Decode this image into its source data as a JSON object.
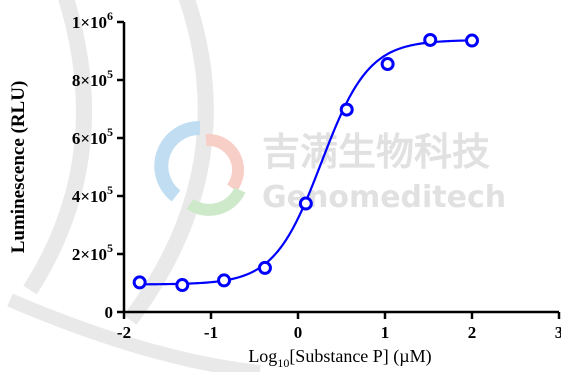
{
  "chart_data": {
    "type": "scatter",
    "title": "",
    "xlabel_main": "Log",
    "xlabel_sub": "10",
    "xlabel_rest": "[Substance P] (µM)",
    "ylabel": "Luminescence (RLU)",
    "xlim": [
      -2,
      3
    ],
    "ylim": [
      0,
      1000000
    ],
    "x_ticks": [
      {
        "value": -2,
        "label": "-2"
      },
      {
        "value": -1,
        "label": "-1"
      },
      {
        "value": 0,
        "label": "0"
      },
      {
        "value": 1,
        "label": "1"
      },
      {
        "value": 2,
        "label": "2"
      },
      {
        "value": 3,
        "label": "3"
      }
    ],
    "y_ticks": [
      {
        "value": 0,
        "base": "0",
        "exp": ""
      },
      {
        "value": 200000,
        "base": "2×10",
        "exp": "5"
      },
      {
        "value": 400000,
        "base": "4×10",
        "exp": "5"
      },
      {
        "value": 600000,
        "base": "6×10",
        "exp": "5"
      },
      {
        "value": 800000,
        "base": "8×10",
        "exp": "5"
      },
      {
        "value": 1000000,
        "base": "1×10",
        "exp": "6"
      }
    ],
    "points": {
      "x": [
        -1.82,
        -1.33,
        -0.85,
        -0.38,
        0.09,
        0.56,
        1.03,
        1.52,
        2.0
      ],
      "y": [
        102000,
        93000,
        109000,
        152000,
        374000,
        698000,
        855000,
        938000,
        936000
      ]
    },
    "fit_curve": {
      "type": "4PL",
      "bottom": 95000,
      "top": 938000,
      "log_ec50": 0.27,
      "hill": 1.6
    },
    "series_color": "#0000ff",
    "grid": false
  },
  "watermark": {
    "chinese": "吉满生物科技",
    "english": "Genomeditech"
  }
}
